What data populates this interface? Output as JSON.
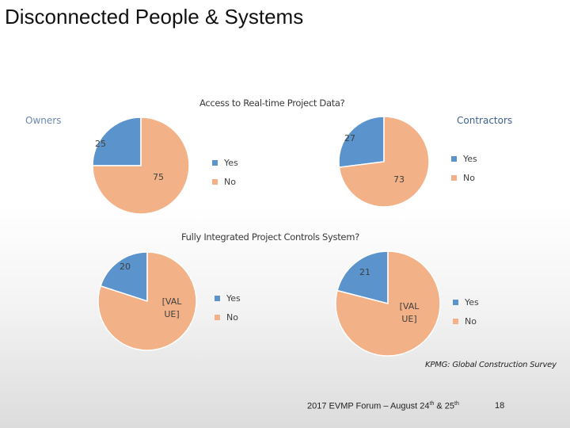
{
  "slide": {
    "title": "Disconnected People & Systems"
  },
  "colors": {
    "yes": "#5b93cc",
    "no": "#f2b187",
    "owners_label": "#6d88b3",
    "contractors_label": "#3e5f8e",
    "slice_stroke": "#ffffff"
  },
  "chart_data": [
    {
      "type": "pie",
      "title": "Access to Real-time Project Data?",
      "group": "Owners",
      "labels": [
        "Yes",
        "No"
      ],
      "values": [
        25,
        75
      ],
      "data_labels": [
        "25",
        "75"
      ],
      "legend": [
        "Yes",
        "No"
      ]
    },
    {
      "type": "pie",
      "title": "",
      "group": "Contractors",
      "labels": [
        "Yes",
        "No"
      ],
      "values": [
        27,
        73
      ],
      "data_labels": [
        "27",
        "73"
      ],
      "legend": [
        "Yes",
        "No"
      ]
    },
    {
      "type": "pie",
      "title": "Fully Integrated Project Controls System?",
      "labels": [
        "Yes",
        "No"
      ],
      "values": [
        20,
        80
      ],
      "data_labels": [
        "20",
        "[VAL UE]"
      ],
      "legend": [
        "Yes",
        "No"
      ]
    },
    {
      "type": "pie",
      "title": "",
      "labels": [
        "Yes",
        "No"
      ],
      "values": [
        21,
        79
      ],
      "data_labels": [
        "21",
        "[VAL UE]"
      ],
      "legend": [
        "Yes",
        "No"
      ]
    }
  ],
  "source": "KPMG: Global Construction Survey",
  "footer": {
    "event": "2017 EVMP Forum – August 24",
    "sup1": "th",
    "and": " & 25",
    "sup2": "th",
    "page_number": "18"
  }
}
